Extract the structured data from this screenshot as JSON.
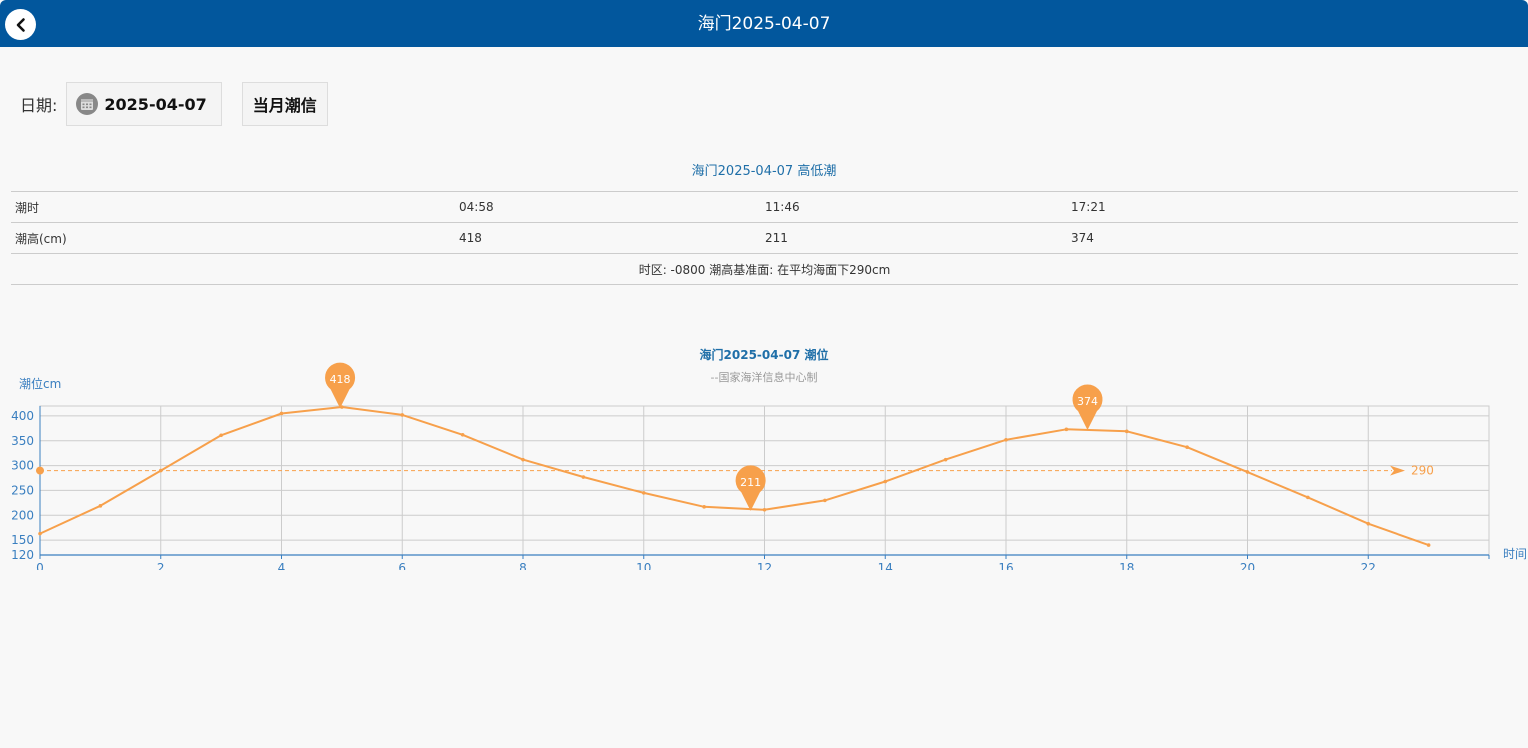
{
  "header": {
    "title": "海门2025-04-07"
  },
  "controls": {
    "date_label": "日期:",
    "date_value": "2025-04-07",
    "month_button": "当月潮信"
  },
  "table": {
    "title": "海门2025-04-07 高低潮",
    "time_label": "潮时",
    "times": [
      "04:58",
      "11:46",
      "17:21"
    ],
    "height_label": "潮高(cm)",
    "heights": [
      "418",
      "211",
      "374"
    ],
    "footnote": "时区: -0800 潮高基准面: 在平均海面下290cm"
  },
  "chart_data": {
    "type": "line",
    "title": "海门2025-04-07 潮位",
    "subtitle": "--国家海洋信息中心制",
    "ylabel": "潮位cm",
    "xlabel": "时间",
    "ylim": [
      120,
      420
    ],
    "yticks": [
      120,
      150,
      200,
      250,
      300,
      350,
      400
    ],
    "xlim": [
      0,
      24
    ],
    "xticks": [
      0,
      2,
      4,
      6,
      8,
      10,
      12,
      14,
      16,
      18,
      20,
      22
    ],
    "grid": true,
    "color": "#f7a04b",
    "x": [
      0,
      1,
      2,
      3,
      4,
      5,
      6,
      7,
      8,
      9,
      10,
      11,
      12,
      13,
      14,
      15,
      16,
      17,
      18,
      19,
      20,
      21,
      22,
      23
    ],
    "values": [
      163,
      219,
      290,
      361,
      405,
      418,
      402,
      362,
      312,
      277,
      245,
      217,
      211,
      230,
      268,
      312,
      352,
      373,
      369,
      337,
      287,
      236,
      183,
      140
    ],
    "extremes": [
      {
        "x": 4.97,
        "value": 418,
        "label": "418"
      },
      {
        "x": 11.77,
        "value": 211,
        "label": "211"
      },
      {
        "x": 17.35,
        "value": 374,
        "label": "374"
      }
    ],
    "markline": {
      "value": 290,
      "label": "290"
    }
  }
}
